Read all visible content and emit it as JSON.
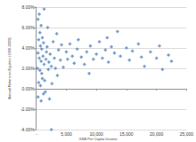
{
  "chart_data": {
    "type": "scatter",
    "xlabel": "GNB Per Capita Income",
    "ylabel": "Annual Return on Equities (1900-2009)",
    "x": [
      300,
      500,
      600,
      800,
      400,
      700,
      900,
      1000,
      1200,
      300,
      500,
      800,
      1100,
      1300,
      200,
      600,
      900,
      1000,
      1400,
      400,
      700,
      1200,
      300,
      800,
      1500,
      1600,
      1700,
      1800,
      2000,
      2100,
      2300,
      2500,
      2600,
      2200,
      2800,
      3000,
      3200,
      3400,
      3500,
      3700,
      4000,
      4200,
      4500,
      2500,
      1900,
      1300,
      5000,
      5200,
      5600,
      6000,
      6300,
      6800,
      7000,
      7500,
      8000,
      8400,
      9000,
      9500,
      10000,
      10500,
      11000,
      11500,
      12000,
      12500,
      13000,
      13500,
      14000,
      15000,
      15500,
      16000,
      17000,
      17500,
      18000,
      19000,
      20000,
      20500,
      21000,
      22000,
      22500,
      8800,
      11800
    ],
    "values": [
      6.8,
      7.3,
      5.5,
      6.2,
      4.8,
      4.2,
      3.9,
      5.0,
      4.5,
      3.5,
      3.0,
      2.7,
      3.2,
      2.4,
      2.0,
      1.8,
      1.5,
      1.0,
      0.8,
      0.6,
      0.3,
      -0.5,
      -0.8,
      -1.2,
      -0.3,
      2.9,
      3.6,
      4.1,
      1.9,
      2.6,
      3.4,
      2.2,
      0.5,
      -1.0,
      4.6,
      3.0,
      2.0,
      5.4,
      1.3,
      3.8,
      2.8,
      4.3,
      2.1,
      -4.0,
      6.0,
      7.8,
      3.6,
      2.9,
      4.4,
      3.2,
      2.5,
      3.9,
      4.8,
      3.1,
      2.4,
      3.6,
      4.2,
      2.9,
      3.4,
      4.6,
      3.0,
      3.8,
      2.6,
      4.1,
      3.5,
      5.6,
      3.2,
      4.0,
      2.8,
      3.7,
      4.4,
      3.1,
      2.2,
      3.6,
      3.0,
      4.2,
      1.9,
      3.3,
      2.7,
      1.5,
      5.0
    ],
    "color": "#4a7ebb",
    "marker": "diamond",
    "xlim": [
      0,
      25000
    ],
    "xticks": [
      {
        "value": 0,
        "label": "-"
      },
      {
        "value": 5000,
        "label": "5,000"
      },
      {
        "value": 10000,
        "label": "10,000"
      },
      {
        "value": 15000,
        "label": "15,000"
      },
      {
        "value": 20000,
        "label": "20,000"
      },
      {
        "value": 25000,
        "label": "25,000"
      }
    ],
    "ylim": [
      -4,
      8
    ],
    "yticks": [
      {
        "value": -4,
        "label": "-4.00%"
      },
      {
        "value": -2,
        "label": "-2.00%"
      },
      {
        "value": 0,
        "label": "0.00%"
      },
      {
        "value": 2,
        "label": "2.00%"
      },
      {
        "value": 4,
        "label": "4.00%"
      },
      {
        "value": 6,
        "label": "6.00%"
      },
      {
        "value": 8,
        "label": "8.00%"
      }
    ],
    "grid": true
  }
}
